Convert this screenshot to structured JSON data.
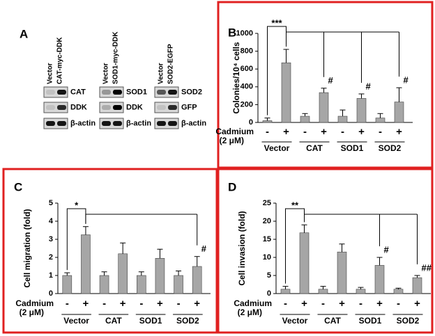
{
  "panel_a": {
    "letter": "A",
    "blots": [
      {
        "lanes": [
          "Vector",
          "CAT-myc-DDK"
        ],
        "rows": [
          "CAT",
          "DDK",
          "β-actin"
        ]
      },
      {
        "lanes": [
          "Vector",
          "SOD1-myc-DDK"
        ],
        "rows": [
          "SOD1",
          "DDK",
          "β-actin"
        ]
      },
      {
        "lanes": [
          "Vector",
          "SOD2-EGFP"
        ],
        "rows": [
          "SOD2",
          "GFP",
          "β-actin"
        ]
      }
    ]
  },
  "chart_data": [
    {
      "type": "bar",
      "letter": "B",
      "y_label": "Colonies/10⁴ cells",
      "categories": [
        "-",
        "+",
        "-",
        "+",
        "-",
        "+",
        "-",
        "+"
      ],
      "groups": [
        "Vector",
        "CAT",
        "SOD1",
        "SOD2"
      ],
      "treatment_label": "Cadmium",
      "treatment_unit": "(2 μM)",
      "values": [
        20,
        670,
        70,
        335,
        70,
        270,
        50,
        230
      ],
      "errors": [
        30,
        150,
        30,
        50,
        70,
        50,
        50,
        160
      ],
      "color": "#a6a6a6",
      "ylim": [
        0,
        1000
      ],
      "yticks": [
        0,
        200,
        400,
        600,
        800,
        1000
      ],
      "annotations": [
        "***",
        "#",
        "#",
        "#"
      ]
    },
    {
      "type": "bar",
      "letter": "C",
      "y_label": "Cell migration (fold)",
      "categories": [
        "-",
        "+",
        "-",
        "+",
        "-",
        "+",
        "-",
        "+"
      ],
      "groups": [
        "Vector",
        "CAT",
        "SOD1",
        "SOD2"
      ],
      "treatment_label": "Cadmium",
      "treatment_unit": "(2 μM)",
      "values": [
        1,
        3.25,
        1,
        2.2,
        1,
        1.95,
        1,
        1.5
      ],
      "errors": [
        0.15,
        0.45,
        0.2,
        0.6,
        0.2,
        0.5,
        0.25,
        0.55
      ],
      "color": "#a6a6a6",
      "ylim": [
        0,
        5
      ],
      "yticks": [
        0,
        1,
        2,
        3,
        4,
        5
      ],
      "annotations": [
        "*",
        "#"
      ]
    },
    {
      "type": "bar",
      "letter": "D",
      "y_label": "Cell invasion (fold)",
      "categories": [
        "-",
        "+",
        "-",
        "+",
        "-",
        "+",
        "-",
        "+"
      ],
      "groups": [
        "Vector",
        "CAT",
        "SOD1",
        "SOD2"
      ],
      "treatment_label": "Cadmium",
      "treatment_unit": "(2 μM)",
      "values": [
        1.2,
        16.8,
        1.2,
        11.5,
        1.2,
        7.8,
        1.2,
        4.4
      ],
      "errors": [
        0.8,
        2.2,
        0.8,
        2.2,
        0.5,
        2.2,
        0.3,
        0.6
      ],
      "color": "#a6a6a6",
      "ylim": [
        0,
        25
      ],
      "yticks": [
        0,
        5,
        10,
        15,
        20,
        25
      ],
      "annotations": [
        "**",
        "#",
        "##"
      ]
    }
  ]
}
